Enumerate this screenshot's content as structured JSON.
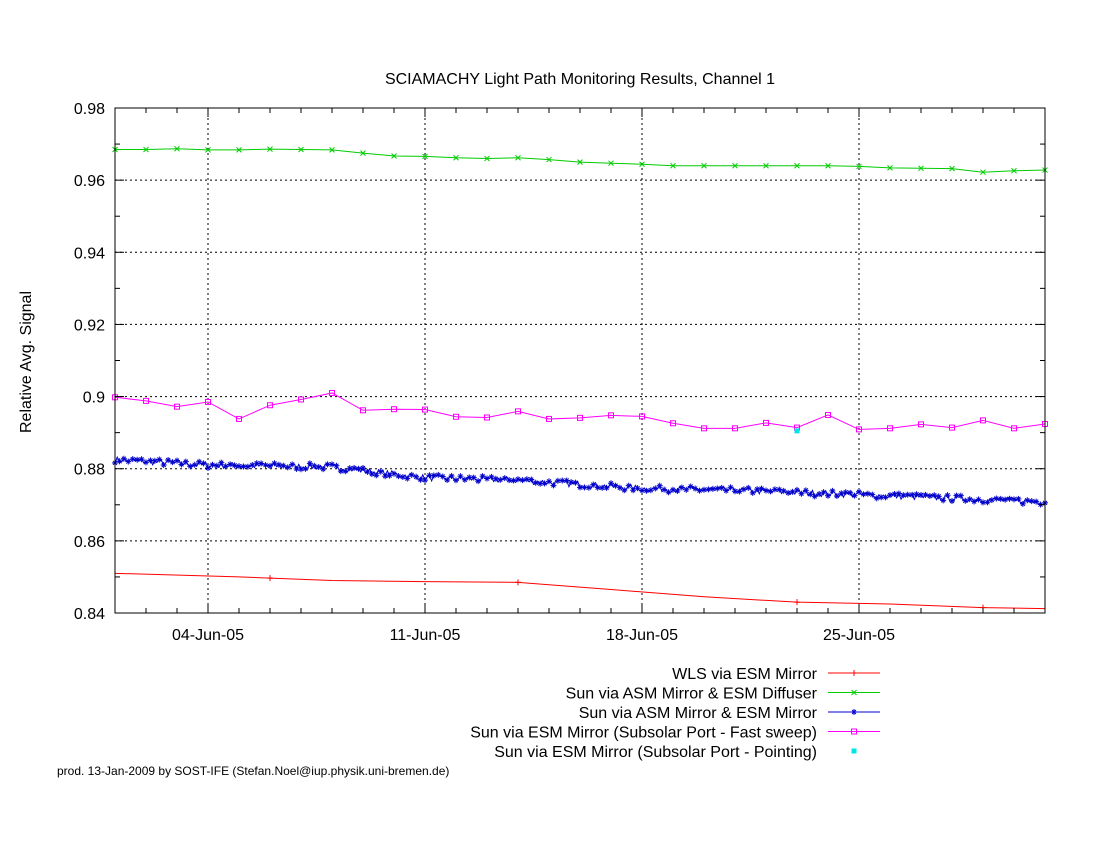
{
  "footer": "prod. 13-Jan-2009 by SOST-IFE (Stefan.Noel@iup.physik.uni-bremen.de)",
  "chart_data": {
    "type": "line",
    "title": "SCIAMACHY Light Path Monitoring Results, Channel 1",
    "xlabel": "",
    "ylabel": "Relative Avg. Signal",
    "x_type": "date",
    "xlim": [
      "2005-06-01",
      "2005-07-01"
    ],
    "ylim": [
      0.84,
      0.98
    ],
    "x_ticks": [
      {
        "label": "04-Jun-05",
        "date": "2005-06-04"
      },
      {
        "label": "11-Jun-05",
        "date": "2005-06-11"
      },
      {
        "label": "18-Jun-05",
        "date": "2005-06-18"
      },
      {
        "label": "25-Jun-05",
        "date": "2005-06-25"
      }
    ],
    "y_ticks": [
      "0.84",
      "0.86",
      "0.88",
      "0.9",
      "0.92",
      "0.94",
      "0.96",
      "0.98"
    ],
    "grid": true,
    "legend_position": "bottom",
    "series": [
      {
        "name": "WLS via ESM Mirror",
        "color": "#ff0000",
        "marker": "plus",
        "x": [
          "2005-06-01",
          "2005-06-05",
          "2005-06-08",
          "2005-06-11",
          "2005-06-14",
          "2005-06-17",
          "2005-06-20",
          "2005-06-23",
          "2005-06-26",
          "2005-06-29",
          "2005-07-01"
        ],
        "y": [
          0.851,
          0.85,
          0.849,
          0.8487,
          0.8485,
          0.8465,
          0.8445,
          0.843,
          0.8425,
          0.8415,
          0.8412
        ],
        "markers_at": [
          "2005-06-06",
          "2005-06-14",
          "2005-06-23",
          "2005-06-29"
        ]
      },
      {
        "name": "Sun via ASM Mirror & ESM Diffuser",
        "color": "#00cc00",
        "marker": "cross",
        "x": [
          "2005-06-01",
          "2005-06-02",
          "2005-06-03",
          "2005-06-04",
          "2005-06-05",
          "2005-06-06",
          "2005-06-07",
          "2005-06-08",
          "2005-06-09",
          "2005-06-10",
          "2005-06-11",
          "2005-06-12",
          "2005-06-13",
          "2005-06-14",
          "2005-06-15",
          "2005-06-16",
          "2005-06-17",
          "2005-06-18",
          "2005-06-19",
          "2005-06-20",
          "2005-06-21",
          "2005-06-22",
          "2005-06-23",
          "2005-06-24",
          "2005-06-25",
          "2005-06-26",
          "2005-06-27",
          "2005-06-28",
          "2005-06-29",
          "2005-06-30",
          "2005-07-01"
        ],
        "y": [
          0.9685,
          0.9685,
          0.9687,
          0.9684,
          0.9684,
          0.9686,
          0.9685,
          0.9684,
          0.9675,
          0.9667,
          0.9666,
          0.9662,
          0.966,
          0.9662,
          0.9657,
          0.965,
          0.9647,
          0.9644,
          0.964,
          0.964,
          0.964,
          0.964,
          0.964,
          0.964,
          0.9638,
          0.9634,
          0.9633,
          0.9632,
          0.9622,
          0.9626,
          0.9628
        ]
      },
      {
        "name": "Sun via ASM Mirror & ESM Mirror",
        "color": "#0000cc",
        "marker": "star",
        "x": [
          "2005-06-01",
          "2005-06-04",
          "2005-06-08",
          "2005-06-11",
          "2005-06-14",
          "2005-06-18",
          "2005-06-21",
          "2005-06-25",
          "2005-06-28",
          "2005-07-01"
        ],
        "y": [
          0.8825,
          0.881,
          0.8805,
          0.8775,
          0.8768,
          0.8745,
          0.874,
          0.8728,
          0.8718,
          0.8708
        ]
      },
      {
        "name": "Sun via ESM Mirror (Subsolar Port - Fast sweep)",
        "color": "#ff00ff",
        "marker": "square",
        "x": [
          "2005-06-01",
          "2005-06-02",
          "2005-06-03",
          "2005-06-04",
          "2005-06-05",
          "2005-06-06",
          "2005-06-07",
          "2005-06-08",
          "2005-06-09",
          "2005-06-10",
          "2005-06-11",
          "2005-06-12",
          "2005-06-13",
          "2005-06-14",
          "2005-06-15",
          "2005-06-16",
          "2005-06-17",
          "2005-06-18",
          "2005-06-19",
          "2005-06-20",
          "2005-06-21",
          "2005-06-22",
          "2005-06-23",
          "2005-06-24",
          "2005-06-25",
          "2005-06-26",
          "2005-06-27",
          "2005-06-28",
          "2005-06-29",
          "2005-06-30",
          "2005-07-01"
        ],
        "y": [
          0.8998,
          0.8988,
          0.8972,
          0.8985,
          0.8938,
          0.8976,
          0.8992,
          0.901,
          0.8962,
          0.8965,
          0.8964,
          0.8944,
          0.8942,
          0.8959,
          0.8938,
          0.8941,
          0.8948,
          0.8945,
          0.8926,
          0.8912,
          0.8912,
          0.8927,
          0.8914,
          0.8949,
          0.8909,
          0.8912,
          0.8923,
          0.8914,
          0.8934,
          0.8912,
          0.8924
        ]
      },
      {
        "name": "Sun via ESM Mirror (Subsolar Port - Pointing)",
        "color": "#00e5e5",
        "marker": "dot",
        "x": [
          "2005-06-23"
        ],
        "y": [
          0.8905
        ]
      }
    ]
  }
}
